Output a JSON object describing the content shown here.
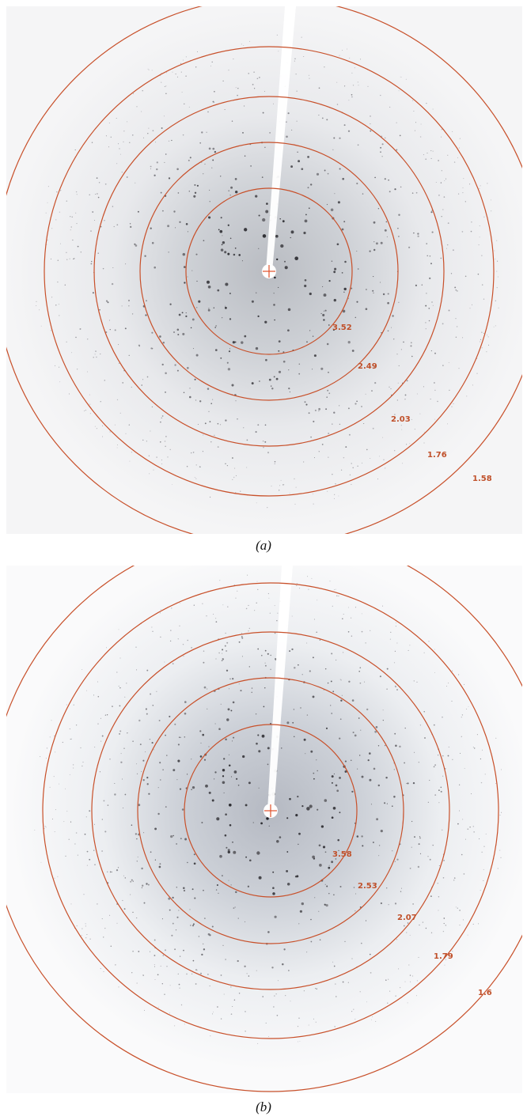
{
  "panels": [
    {
      "caption": "(a)",
      "ring_labels": [
        "3.52",
        "2.49",
        "2.03",
        "1.76",
        "1.58"
      ]
    },
    {
      "caption": "(b)",
      "ring_labels": [
        "3.58",
        "2.53",
        "2.07",
        "1.79",
        "1.6"
      ]
    }
  ]
}
